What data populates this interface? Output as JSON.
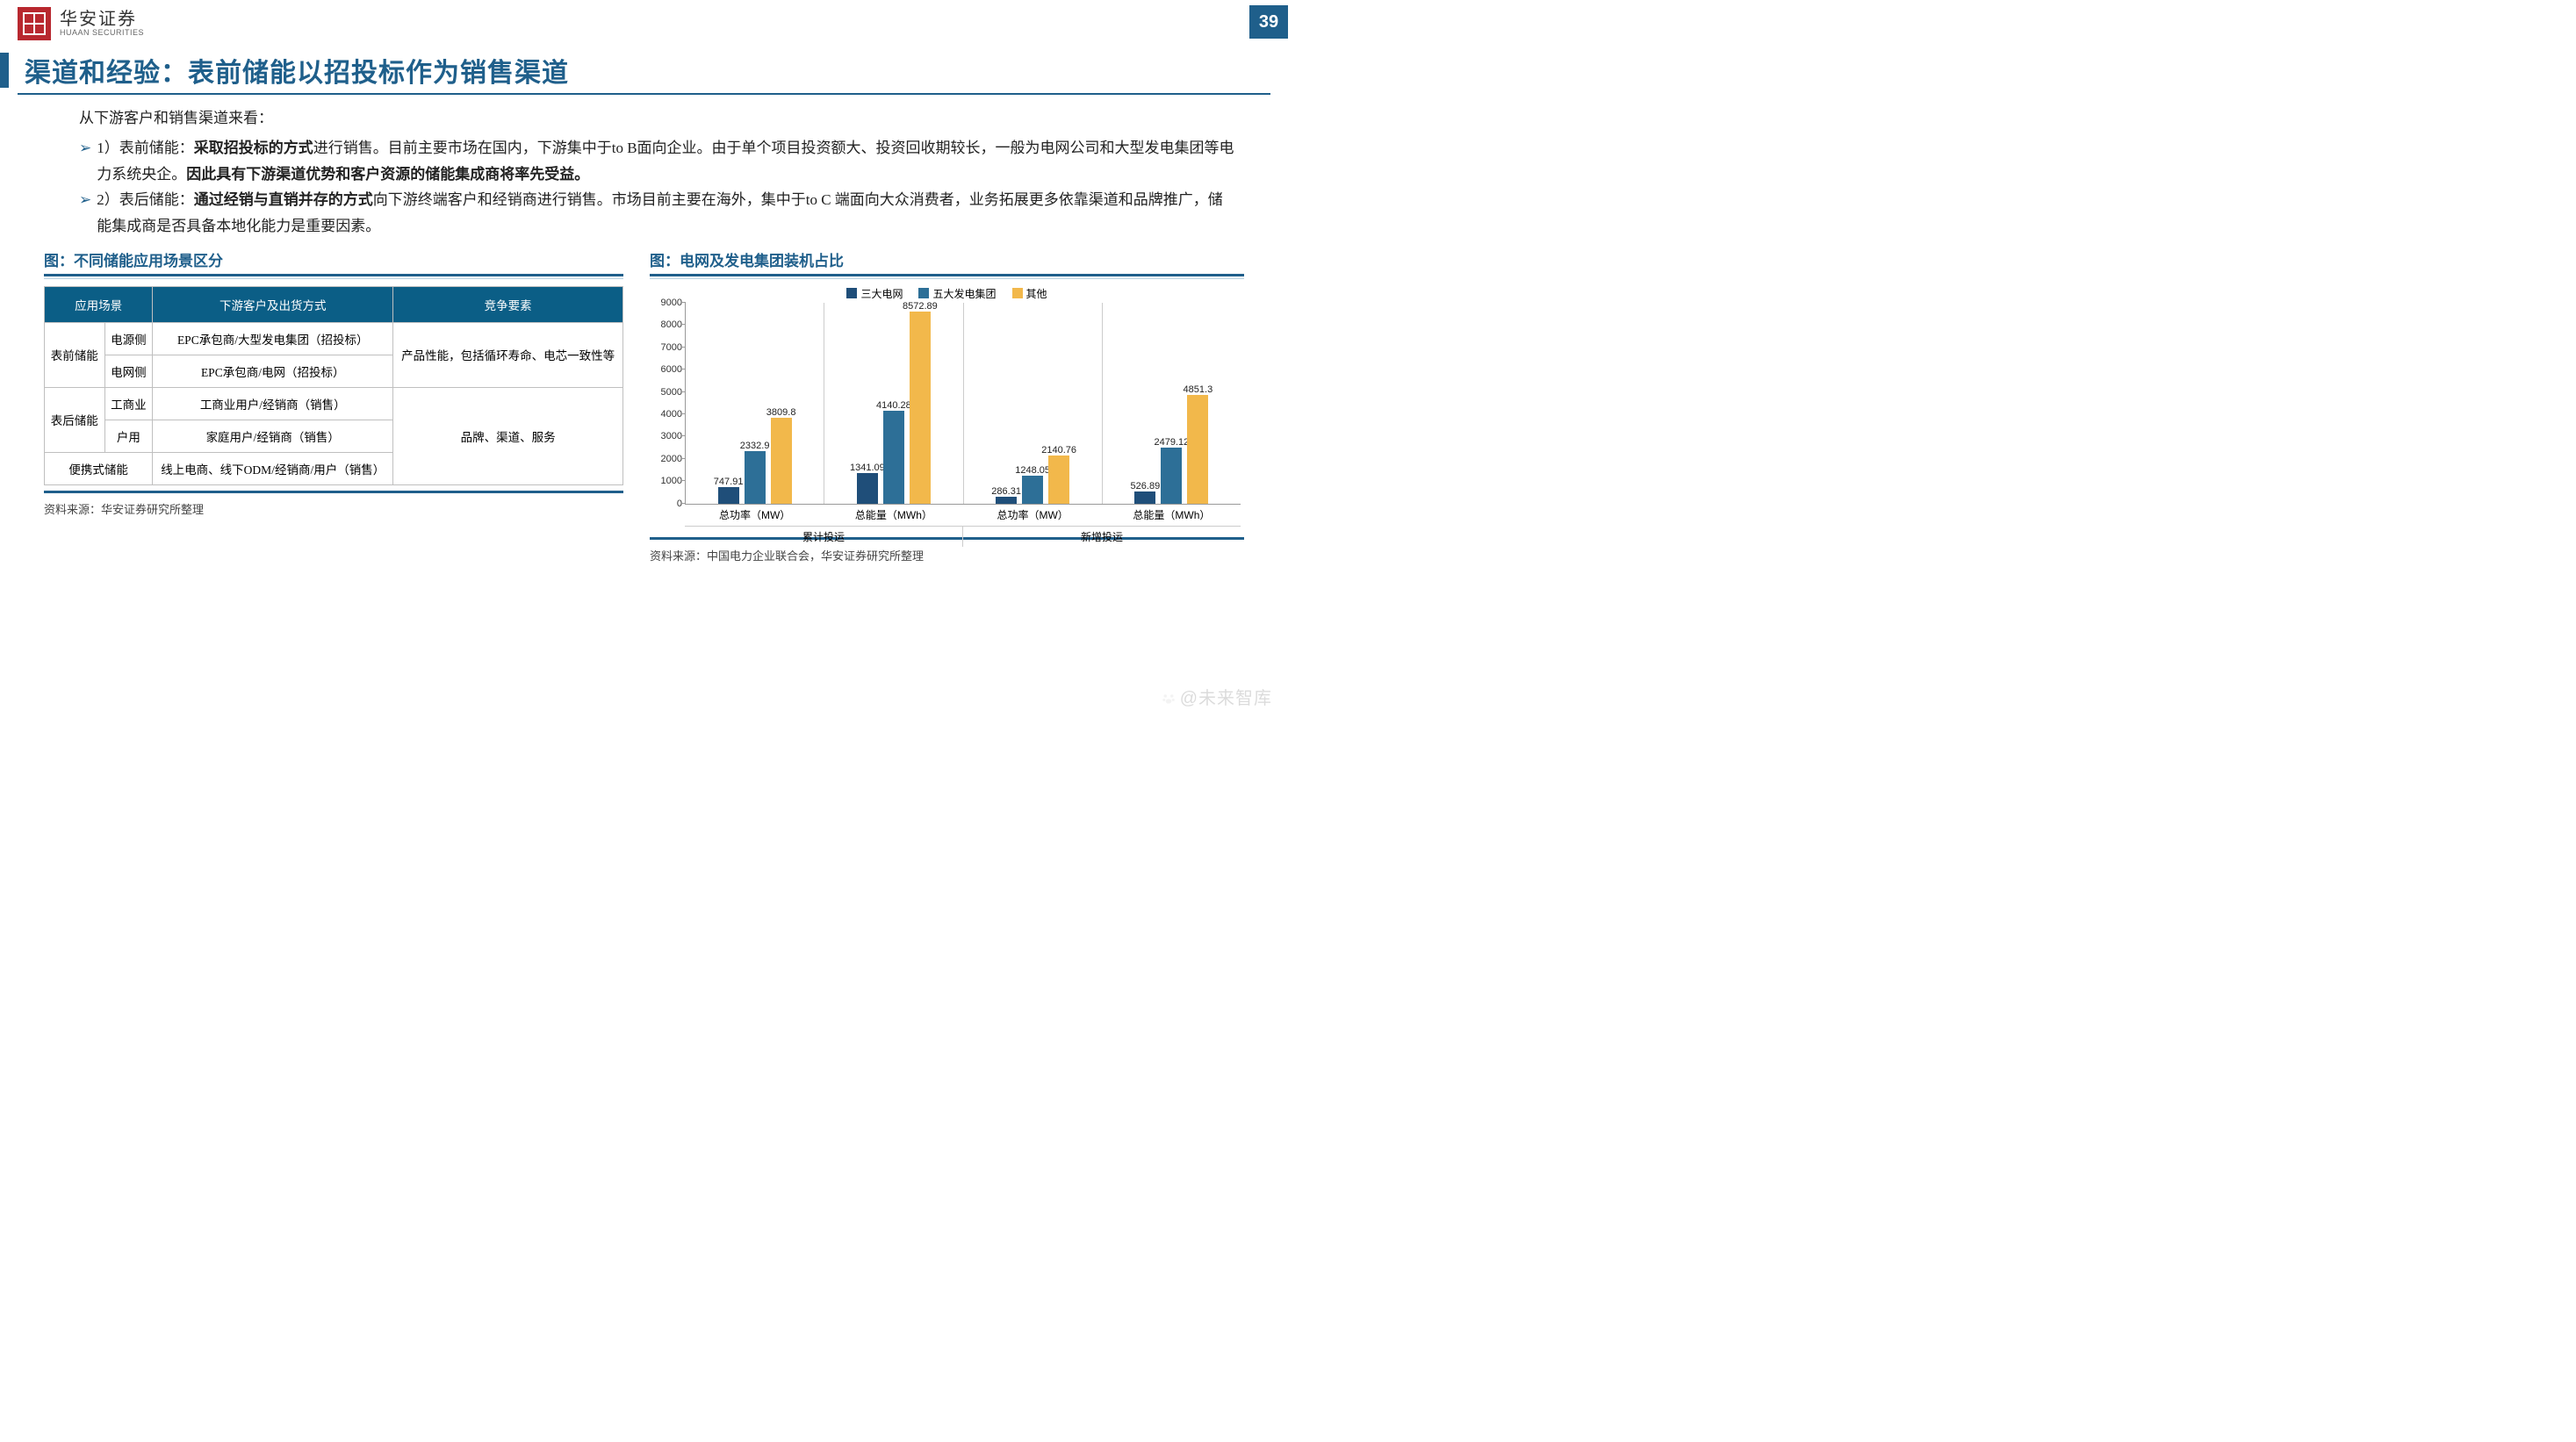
{
  "page_number": "39",
  "company": {
    "cn": "华安证券",
    "en": "HUAAN SECURITIES"
  },
  "title": "渠道和经验：表前储能以招投标作为销售渠道",
  "intro": "从下游客户和销售渠道来看：",
  "bullets": [
    {
      "num": "1）",
      "label": "表前储能：",
      "bold1": "采取招投标的方式",
      "mid": "进行销售。目前主要市场在国内，下游集中于to B面向企业。由于单个项目投资额大、投资回收期较长，一般为电网公司和大型发电集团等电力系统央企。",
      "bold2": "因此具有下游渠道优势和客户资源的储能集成商将率先受益。"
    },
    {
      "num": "2）",
      "label": "表后储能：",
      "bold1": "通过经销与直销并存的方式",
      "mid": "向下游终端客户和经销商进行销售。市场目前主要在海外，集中于to C 端面向大众消费者，业务拓展更多依靠渠道和品牌推广，储能集成商是否具备本地化能力是重要因素。",
      "bold2": ""
    }
  ],
  "fig_left": {
    "title": "图：不同储能应用场景区分",
    "headers": [
      "应用场景",
      "下游客户及出货方式",
      "竞争要素"
    ],
    "rows": [
      {
        "app": "表前储能",
        "sub": "电源侧",
        "cust": "EPC承包商/大型发电集团（招投标）",
        "comp": "产品性能，包括循环寿命、电芯一致性等",
        "app_rs": 2,
        "comp_rs": 2
      },
      {
        "sub": "电网侧",
        "cust": "EPC承包商/电网（招投标）"
      },
      {
        "app": "表后储能",
        "sub": "工商业",
        "cust": "工商业用户/经销商（销售）",
        "comp": "品牌、渠道、服务",
        "app_rs": 2,
        "comp_rs": 3
      },
      {
        "sub": "户用",
        "cust": "家庭用户/经销商（销售）"
      },
      {
        "app": "便携式储能",
        "cust": "线上电商、线下ODM/经销商/用户（销售）",
        "app_cs": 2
      }
    ],
    "source": "资料来源：华安证券研究所整理"
  },
  "fig_right": {
    "title": "图：电网及发电集团装机占比",
    "legend": [
      "三大电网",
      "五大发电集团",
      "其他"
    ],
    "colors": [
      "#1f4e79",
      "#2d6f97",
      "#f2b84b"
    ],
    "ymax": 9000,
    "ytick_step": 1000,
    "super_categories": [
      "累计投运",
      "新增投运"
    ],
    "categories": [
      "总功率（MW）",
      "总能量（MWh）",
      "总功率（MW）",
      "总能量（MWh）"
    ],
    "series": [
      [
        747.91,
        1341.09,
        286.31,
        526.89
      ],
      [
        2332.9,
        4140.28,
        1248.05,
        2479.12
      ],
      [
        3809.8,
        8572.89,
        2140.76,
        4851.3
      ]
    ],
    "source": "资料来源：中国电力企业联合会，华安证券研究所整理"
  },
  "watermark": "@未来智库"
}
